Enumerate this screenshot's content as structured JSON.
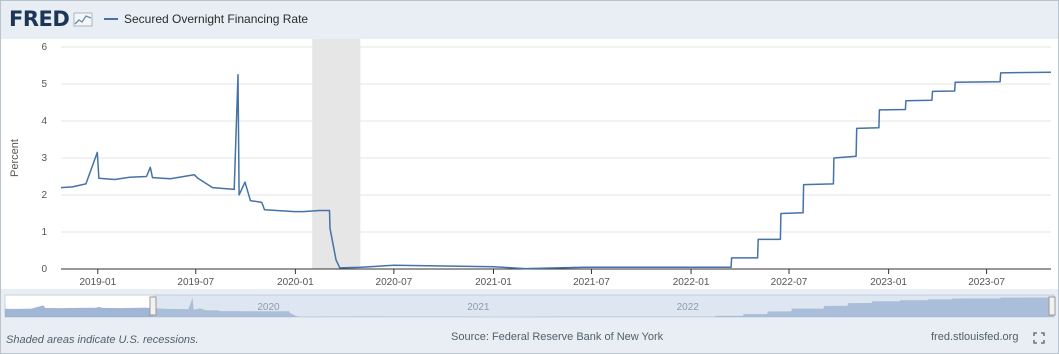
{
  "header": {
    "logo_text": "FRED",
    "series_label": "Secured Overnight Financing Rate"
  },
  "footer": {
    "recession_note": "Shaded areas indicate U.S. recessions.",
    "source": "Source: Federal Reserve Bank of New York",
    "site": "fred.stlouisfed.org"
  },
  "navigator": {
    "year_labels": [
      "2020",
      "2021",
      "2022"
    ]
  },
  "colors": {
    "line": "#4572a7",
    "recession": "#e6e6e6",
    "grid": "#e6e6e6",
    "header_bg": "#e8eef4"
  },
  "icons": [
    "logo-chart-icon",
    "fullscreen-icon"
  ],
  "chart_data": {
    "type": "line",
    "title": "",
    "xlabel": "",
    "ylabel": "Percent",
    "ylim": [
      0,
      6
    ],
    "yticks": [
      0,
      1,
      2,
      3,
      4,
      5,
      6
    ],
    "xlim": [
      "2018-10-25",
      "2023-10-28"
    ],
    "xticks": [
      "2019-01",
      "2019-07",
      "2020-01",
      "2020-07",
      "2021-01",
      "2021-07",
      "2022-01",
      "2022-07",
      "2023-01",
      "2023-07"
    ],
    "grid": true,
    "legend_position": "top-left",
    "recessions": [
      [
        "2020-02-01",
        "2020-04-30"
      ]
    ],
    "series": [
      {
        "name": "Secured Overnight Financing Rate",
        "points": [
          [
            "2018-10-25",
            2.2
          ],
          [
            "2018-11-15",
            2.22
          ],
          [
            "2018-12-10",
            2.3
          ],
          [
            "2018-12-31",
            3.15
          ],
          [
            "2019-01-03",
            2.45
          ],
          [
            "2019-02-01",
            2.42
          ],
          [
            "2019-03-01",
            2.48
          ],
          [
            "2019-04-01",
            2.5
          ],
          [
            "2019-04-08",
            2.75
          ],
          [
            "2019-04-12",
            2.47
          ],
          [
            "2019-05-15",
            2.44
          ],
          [
            "2019-06-28",
            2.55
          ],
          [
            "2019-07-05",
            2.45
          ],
          [
            "2019-08-01",
            2.2
          ],
          [
            "2019-09-10",
            2.15
          ],
          [
            "2019-09-17",
            5.25
          ],
          [
            "2019-09-19",
            2.0
          ],
          [
            "2019-09-30",
            2.35
          ],
          [
            "2019-10-10",
            1.85
          ],
          [
            "2019-10-31",
            1.8
          ],
          [
            "2019-11-05",
            1.6
          ],
          [
            "2019-12-31",
            1.55
          ],
          [
            "2020-01-15",
            1.55
          ],
          [
            "2020-02-15",
            1.58
          ],
          [
            "2020-03-04",
            1.58
          ],
          [
            "2020-03-05",
            1.1
          ],
          [
            "2020-03-16",
            0.25
          ],
          [
            "2020-03-23",
            0.03
          ],
          [
            "2020-05-01",
            0.05
          ],
          [
            "2020-07-01",
            0.1
          ],
          [
            "2020-10-01",
            0.08
          ],
          [
            "2021-01-01",
            0.06
          ],
          [
            "2021-03-01",
            0.01
          ],
          [
            "2021-06-17",
            0.05
          ],
          [
            "2021-10-01",
            0.05
          ],
          [
            "2022-01-03",
            0.05
          ],
          [
            "2022-03-16",
            0.05
          ],
          [
            "2022-03-17",
            0.3
          ],
          [
            "2022-05-04",
            0.3
          ],
          [
            "2022-05-05",
            0.8
          ],
          [
            "2022-06-15",
            0.8
          ],
          [
            "2022-06-16",
            1.5
          ],
          [
            "2022-07-27",
            1.52
          ],
          [
            "2022-07-28",
            2.28
          ],
          [
            "2022-09-21",
            2.3
          ],
          [
            "2022-09-22",
            3.0
          ],
          [
            "2022-11-02",
            3.05
          ],
          [
            "2022-11-03",
            3.8
          ],
          [
            "2022-12-14",
            3.82
          ],
          [
            "2022-12-15",
            4.3
          ],
          [
            "2023-02-01",
            4.31
          ],
          [
            "2023-02-02",
            4.55
          ],
          [
            "2023-03-22",
            4.56
          ],
          [
            "2023-03-23",
            4.8
          ],
          [
            "2023-05-03",
            4.81
          ],
          [
            "2023-05-04",
            5.05
          ],
          [
            "2023-07-26",
            5.06
          ],
          [
            "2023-07-27",
            5.3
          ],
          [
            "2023-10-28",
            5.32
          ]
        ]
      }
    ]
  }
}
